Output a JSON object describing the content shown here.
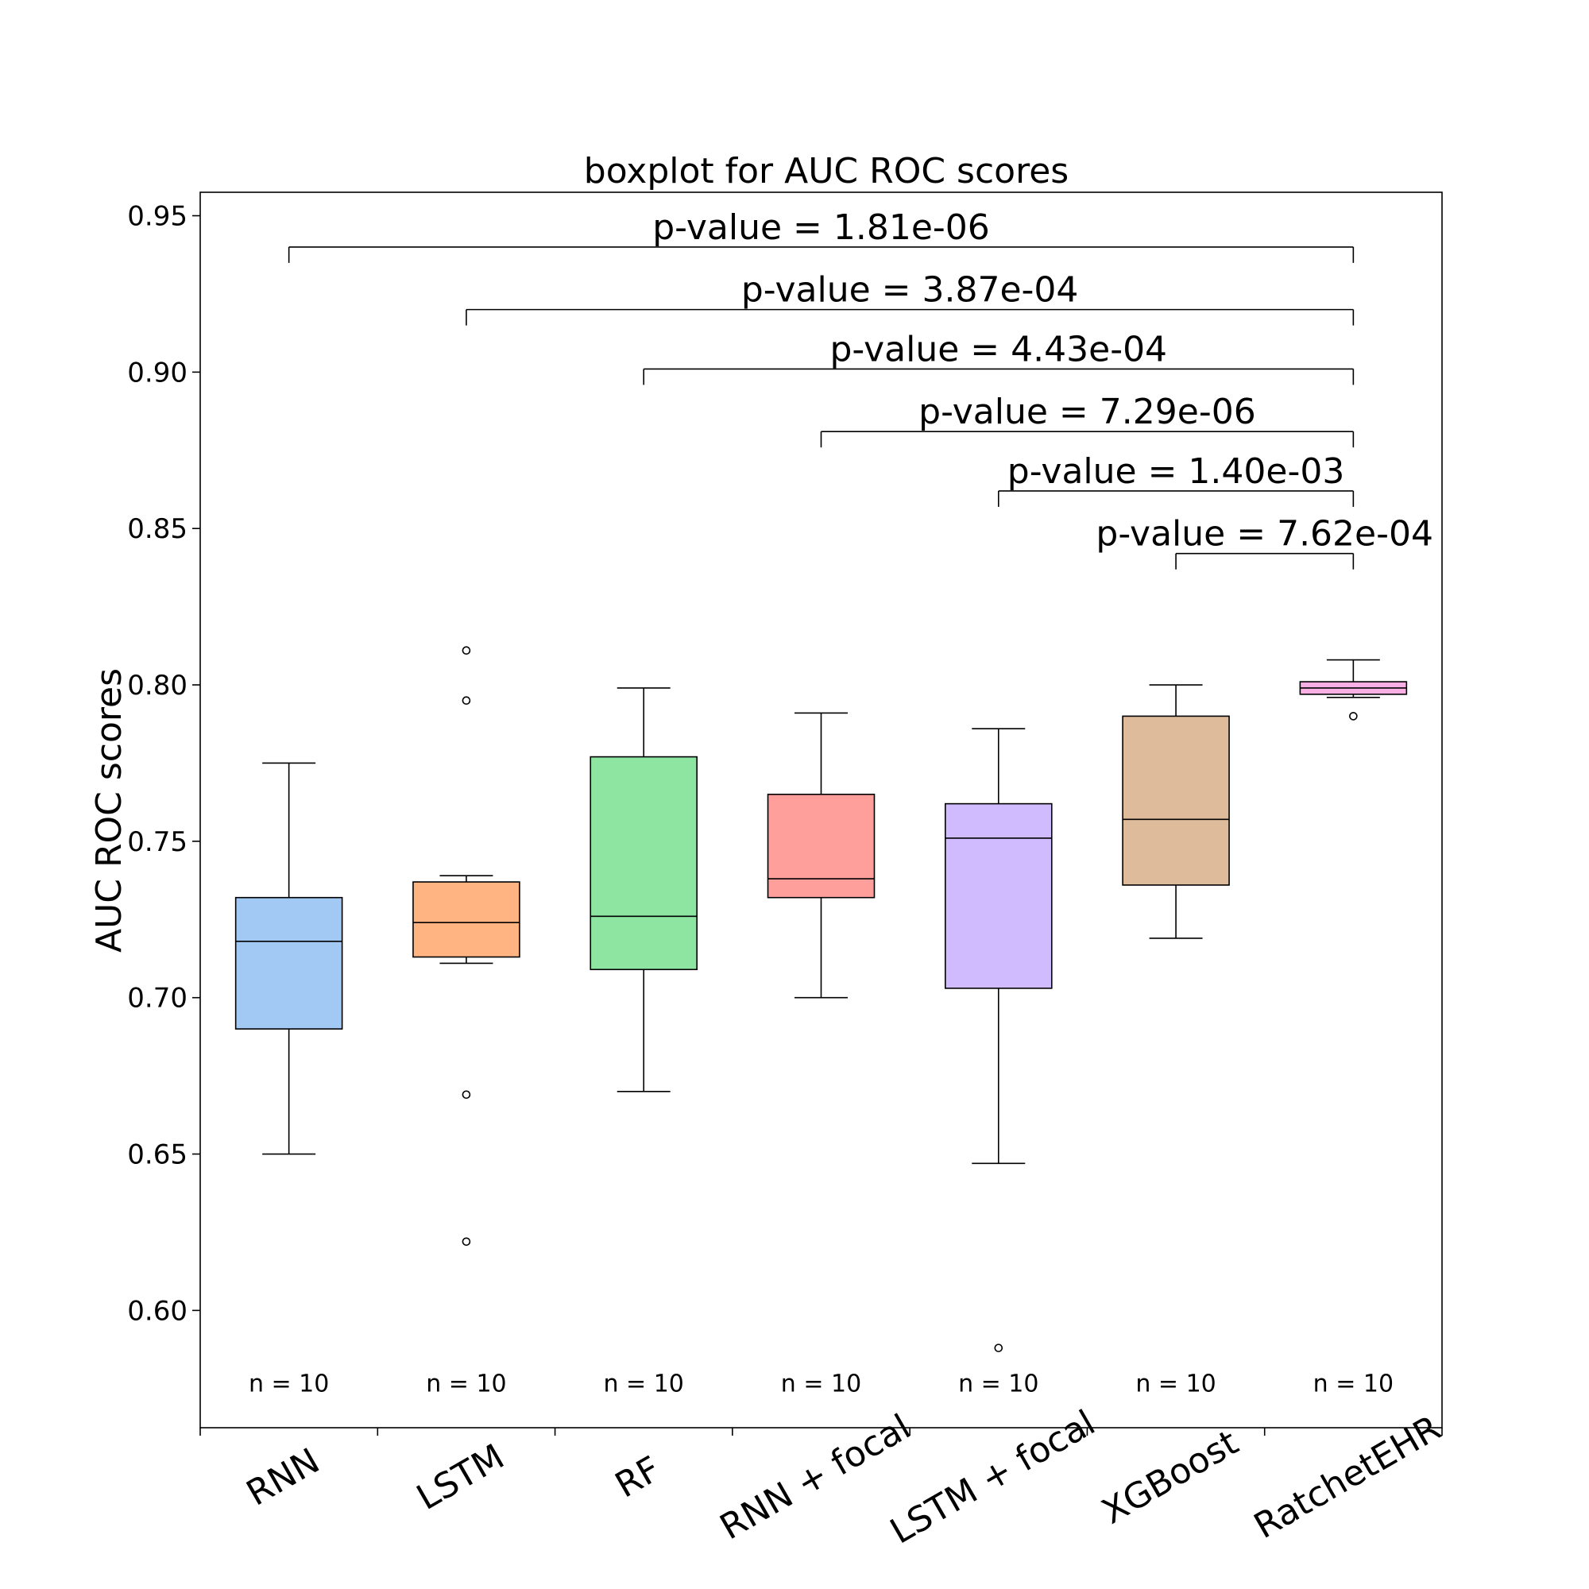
{
  "chart_data": {
    "type": "box",
    "title": "boxplot for AUC ROC scores",
    "xlabel": "",
    "ylabel": "AUC ROC scores",
    "ylim": [
      0.5625,
      0.9575
    ],
    "yticks": [
      0.6,
      0.65,
      0.7,
      0.75,
      0.8,
      0.85,
      0.9,
      0.95
    ],
    "ytick_labels": [
      "0.60",
      "0.65",
      "0.70",
      "0.75",
      "0.80",
      "0.85",
      "0.90",
      "0.95"
    ],
    "categories": [
      "RNN",
      "LSTM",
      "RF",
      "RNN + focal",
      "LSTM + focal",
      "XGBoost",
      "RatchetEHR"
    ],
    "colors": [
      "#a1c9f4",
      "#ffb482",
      "#8de5a1",
      "#ff9f9b",
      "#d0bbff",
      "#debb9b",
      "#fab0e4"
    ],
    "boxes": [
      {
        "whislo": 0.65,
        "q1": 0.69,
        "med": 0.718,
        "q3": 0.732,
        "whishi": 0.775,
        "fliers": []
      },
      {
        "whislo": 0.711,
        "q1": 0.713,
        "med": 0.724,
        "q3": 0.737,
        "whishi": 0.739,
        "fliers": [
          0.811,
          0.795,
          0.669,
          0.622
        ]
      },
      {
        "whislo": 0.67,
        "q1": 0.709,
        "med": 0.726,
        "q3": 0.777,
        "whishi": 0.799,
        "fliers": []
      },
      {
        "whislo": 0.7,
        "q1": 0.732,
        "med": 0.738,
        "q3": 0.765,
        "whishi": 0.791,
        "fliers": []
      },
      {
        "whislo": 0.647,
        "q1": 0.703,
        "med": 0.751,
        "q3": 0.762,
        "whishi": 0.786,
        "fliers": [
          0.588
        ]
      },
      {
        "whislo": 0.719,
        "q1": 0.736,
        "med": 0.757,
        "q3": 0.79,
        "whishi": 0.8,
        "fliers": []
      },
      {
        "whislo": 0.796,
        "q1": 0.797,
        "med": 0.799,
        "q3": 0.801,
        "whishi": 0.808,
        "fliers": [
          0.79
        ]
      }
    ],
    "counts": [
      "n = 10",
      "n = 10",
      "n = 10",
      "n = 10",
      "n = 10",
      "n = 10",
      "n = 10"
    ],
    "comparisons": [
      {
        "from": 0,
        "to": 6,
        "y": 0.94,
        "label": "p-value = 1.81e-06"
      },
      {
        "from": 1,
        "to": 6,
        "y": 0.92,
        "label": "p-value = 3.87e-04"
      },
      {
        "from": 2,
        "to": 6,
        "y": 0.901,
        "label": "p-value = 4.43e-04"
      },
      {
        "from": 3,
        "to": 6,
        "y": 0.881,
        "label": "p-value = 7.29e-06"
      },
      {
        "from": 4,
        "to": 6,
        "y": 0.862,
        "label": "p-value = 1.40e-03"
      },
      {
        "from": 5,
        "to": 6,
        "y": 0.842,
        "label": "p-value = 7.62e-04"
      }
    ]
  }
}
